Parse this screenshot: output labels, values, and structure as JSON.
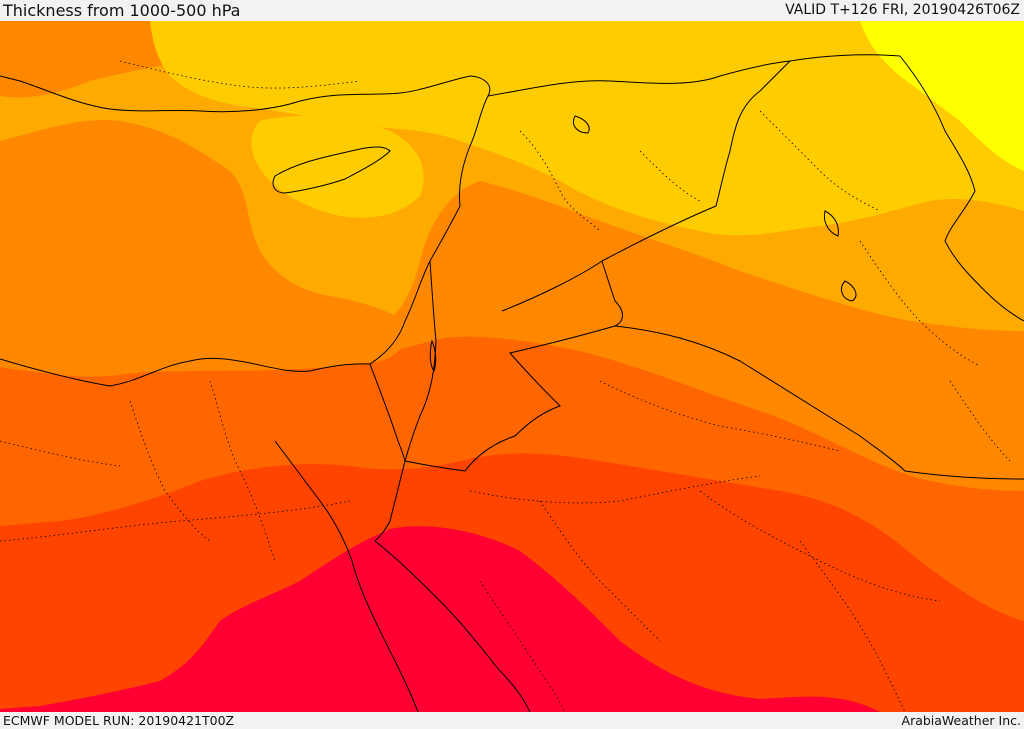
{
  "header": {
    "title": "Thickness from 1000-500 hPa",
    "valid": "VALID T+126 FRI, 20190426T06Z"
  },
  "footer": {
    "model_run": "ECMWF MODEL RUN: 20190421T00Z",
    "credit": "ArabiaWeather Inc."
  },
  "colors": {
    "yellow": "#ffff00",
    "gold": "#ffcc00",
    "light_orange": "#ffaa00",
    "orange": "#ff8800",
    "dark_orange": "#ff6600",
    "red_orange": "#ff4400",
    "crimson": "#ff0033",
    "border": "#000000"
  }
}
